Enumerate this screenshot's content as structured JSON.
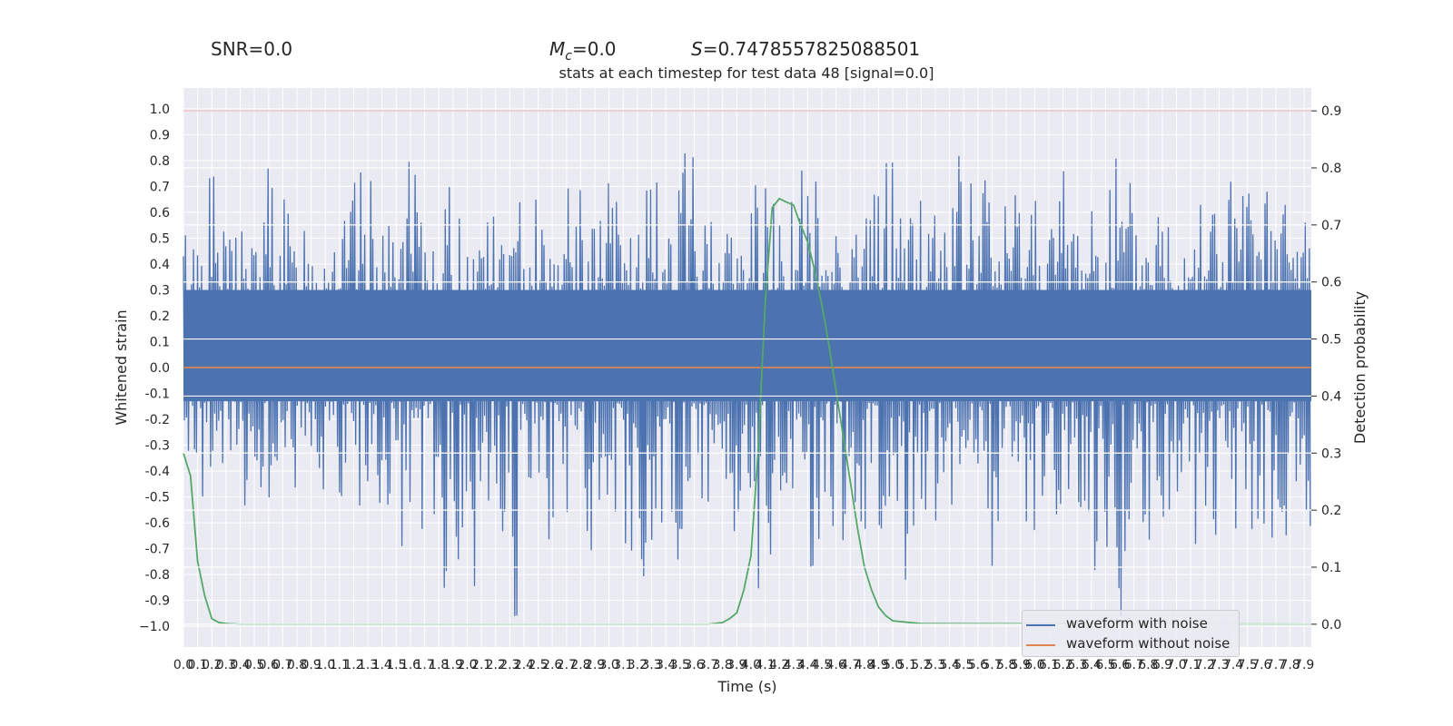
{
  "header": {
    "snr_label": "SNR=0.0",
    "mc_symbol": "M",
    "mc_subscript": "c",
    "mc_value": "=0.0",
    "s_symbol": "S",
    "s_value": "=0.7478557825088501"
  },
  "chart_data": {
    "type": "line",
    "title": "stats at each timestep for test data 48 [signal=0.0]",
    "xlabel": "Time (s)",
    "ylabel_left": "Whitened strain",
    "ylabel_right": "Detection probability",
    "xlim": [
      0.0,
      7.95
    ],
    "ylim_left": [
      -1.08,
      1.08
    ],
    "ylim_right": [
      -0.04,
      0.94
    ],
    "x_tick_labels": [
      "0.0",
      "0.1",
      "0.2",
      "0.3",
      "0.4",
      "0.5",
      "0.6",
      "0.7",
      "0.8",
      "0.9",
      "1.0",
      "1.1",
      "1.2",
      "1.3",
      "1.4",
      "1.5",
      "1.6",
      "1.7",
      "1.8",
      "1.9",
      "2.0",
      "2.1",
      "2.2",
      "2.3",
      "2.4",
      "2.5",
      "2.6",
      "2.7",
      "2.8",
      "2.9",
      "3.0",
      "3.1",
      "3.2",
      "3.3",
      "3.4",
      "3.5",
      "3.6",
      "3.7",
      "3.8",
      "3.9",
      "4.0",
      "4.1",
      "4.2",
      "4.3",
      "4.4",
      "4.5",
      "4.6",
      "4.7",
      "4.8",
      "4.9",
      "5.0",
      "5.1",
      "5.2",
      "5.3",
      "5.4",
      "5.5",
      "5.6",
      "5.7",
      "5.8",
      "5.9",
      "6.0",
      "6.1",
      "6.2",
      "6.3",
      "6.4",
      "6.5",
      "6.6",
      "6.7",
      "6.8",
      "6.9",
      "7.0",
      "7.1",
      "7.2",
      "7.3",
      "7.4",
      "7.5",
      "7.6",
      "7.7",
      "7.8",
      "7.9"
    ],
    "y_left_tick_labels": [
      "1.0",
      "0.9",
      "0.8",
      "0.7",
      "0.6",
      "0.5",
      "0.4",
      "0.3",
      "0.2",
      "0.1",
      "0.0",
      "-0.1",
      "-0.2",
      "-0.3",
      "-0.4",
      "-0.5",
      "-0.6",
      "-0.7",
      "-0.8",
      "-0.9",
      "−1.0"
    ],
    "y_right_tick_labels": [
      "0.9",
      "0.8",
      "0.7",
      "0.6",
      "0.5",
      "0.4",
      "0.3",
      "0.2",
      "0.1",
      "0.0"
    ],
    "threshold": 0.9,
    "series": [
      {
        "name": "waveform with noise",
        "color": "#4c72b0",
        "description": "dense noisy whitened strain, peaks roughly 0.3-0.97 and troughs roughly -0.2 to -1.0",
        "highs": [
          0.58,
          0.62,
          0.83,
          0.54,
          0.71,
          0.52,
          0.61,
          0.93,
          0.66,
          0.53,
          0.72,
          0.57,
          0.64,
          0.59,
          0.76,
          0.74,
          0.68,
          0.55,
          0.63,
          0.83,
          0.57,
          0.61,
          0.7,
          0.66,
          0.55,
          0.96,
          0.62,
          0.58,
          0.67,
          0.96,
          0.64,
          0.56,
          0.74,
          0.69,
          0.61,
          0.77,
          0.73,
          0.66,
          0.59,
          0.72,
          0.77,
          0.8,
          0.84,
          0.62,
          0.69,
          0.73,
          0.55,
          0.82,
          0.88,
          0.75,
          0.65,
          0.84,
          0.85,
          0.78,
          0.71,
          0.83,
          0.69,
          0.62,
          0.78,
          0.89,
          0.91,
          0.68,
          0.74,
          0.8,
          0.73,
          0.82,
          0.85,
          0.86,
          0.64,
          0.71,
          0.77,
          0.88,
          0.72,
          0.69,
          0.85,
          0.66,
          0.83,
          0.76,
          0.91,
          0.75,
          0.61,
          0.67,
          0.73,
          0.62,
          0.69,
          0.97,
          0.84,
          0.71,
          0.82,
          0.7,
          0.66,
          0.73,
          0.79,
          0.62,
          0.7
        ],
        "lows": [
          -0.38,
          -0.52,
          -0.46,
          -0.7,
          -0.58,
          -0.62,
          -0.68,
          -0.55,
          -0.72,
          -0.5,
          -0.63,
          -0.82,
          -0.6,
          -0.7,
          -0.74,
          -0.52,
          -0.66,
          -0.6,
          -0.91,
          -0.75,
          -0.64,
          -0.86,
          -0.97,
          -0.8,
          -0.92,
          -0.55,
          -0.66,
          -1.0,
          -0.72,
          -0.5,
          -0.75,
          -0.61,
          -0.7,
          -0.78,
          -0.86,
          -0.67,
          -0.89,
          -0.74,
          -0.82,
          -0.71,
          -0.66,
          -0.9,
          -0.6,
          -0.75,
          -0.81,
          -0.89,
          -0.72,
          -0.66,
          -0.92,
          -0.84,
          -0.7,
          -0.63,
          -0.78,
          -0.73,
          -0.68,
          -0.8,
          -0.72,
          -0.66,
          -0.74,
          -0.69,
          -0.82,
          -0.63,
          -0.75,
          -0.7,
          -0.66,
          -0.72,
          -0.62,
          -0.69,
          -0.78,
          -0.63,
          -0.7,
          -0.81,
          -0.85,
          -0.69,
          -0.76,
          -0.63,
          -0.91,
          -0.86,
          -0.98,
          -0.8,
          -0.72,
          -0.69,
          -0.76,
          -0.64,
          -0.7,
          -0.83,
          -0.75,
          -0.63,
          -0.68,
          -0.71,
          -0.79,
          -0.66,
          -0.74,
          -0.58,
          -0.78
        ]
      },
      {
        "name": "waveform without noise",
        "color": "#dd8452",
        "x": [
          0.0,
          7.95
        ],
        "y": [
          0.0,
          0.0
        ]
      },
      {
        "name": "",
        "axis": "right",
        "color": "#55a868",
        "x": [
          0.0,
          0.05,
          0.1,
          0.15,
          0.2,
          0.25,
          0.3,
          0.4,
          0.5,
          3.5,
          3.7,
          3.8,
          3.85,
          3.9,
          3.95,
          4.0,
          4.05,
          4.1,
          4.15,
          4.2,
          4.25,
          4.3,
          4.35,
          4.4,
          4.45,
          4.5,
          4.55,
          4.6,
          4.65,
          4.7,
          4.75,
          4.8,
          4.85,
          4.9,
          4.95,
          5.0,
          5.2,
          7.95
        ],
        "y": [
          0.3,
          0.26,
          0.11,
          0.05,
          0.01,
          0.003,
          0.001,
          0.0,
          0.0,
          0.0,
          0.0,
          0.003,
          0.01,
          0.02,
          0.06,
          0.12,
          0.3,
          0.56,
          0.73,
          0.746,
          0.74,
          0.735,
          0.7,
          0.67,
          0.62,
          0.56,
          0.49,
          0.41,
          0.33,
          0.25,
          0.17,
          0.1,
          0.06,
          0.03,
          0.015,
          0.006,
          0.001,
          0.0
        ]
      },
      {
        "name": "",
        "axis": "right",
        "color": "#c44e52",
        "x": [
          0.0,
          7.95
        ],
        "y": [
          0.9,
          0.9
        ]
      }
    ],
    "legend_position": "lower right",
    "grid": true
  }
}
